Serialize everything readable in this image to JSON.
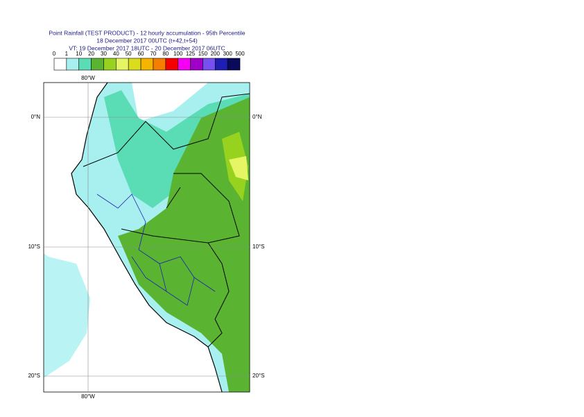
{
  "title": [
    "Point Rainfall (TEST PRODUCT) - 12 hourly accumulation - 95th Percentile",
    "18 December 2017 00UTC (t+42,t+54)",
    "VT: 19 December 2017 18UTC - 20 December 2017 06UTC"
  ],
  "legend": {
    "labels": [
      "0",
      "1",
      "10",
      "20",
      "30",
      "40",
      "50",
      "60",
      "70",
      "80",
      "100",
      "125",
      "150",
      "200",
      "300",
      "500"
    ],
    "colors": [
      "#ffffff",
      "#a8f0f0",
      "#5adcb4",
      "#5ab432",
      "#96d21e",
      "#e6f564",
      "#dcdc1e",
      "#f5b400",
      "#f57d00",
      "#f50000",
      "#f500f5",
      "#a000c8",
      "#7850f0",
      "#1e1eb4",
      "#0a0a5a"
    ]
  },
  "map": {
    "lon_label": "80°W",
    "lat_labels": [
      "0°N",
      "10°S",
      "20°S"
    ]
  }
}
